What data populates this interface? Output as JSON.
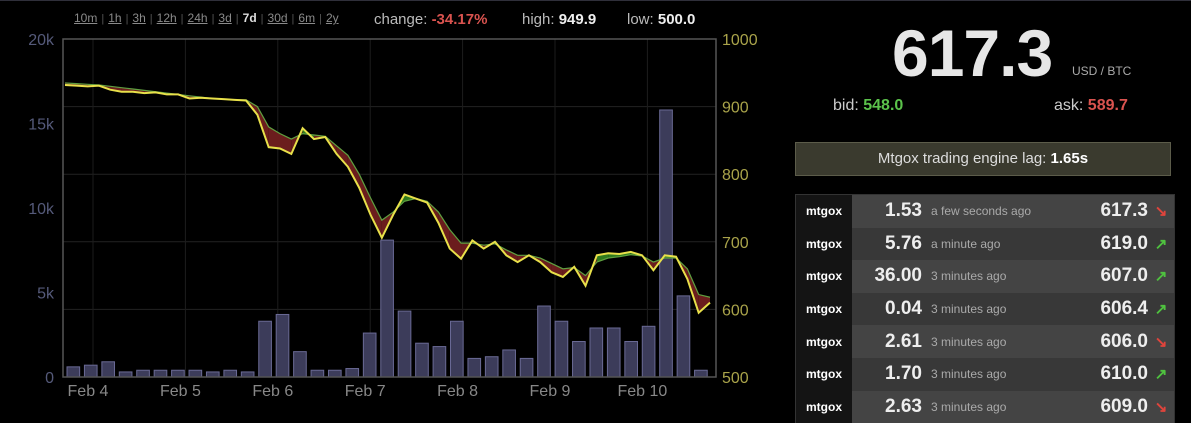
{
  "periods": [
    {
      "label": "10m",
      "active": false
    },
    {
      "label": "1h",
      "active": false
    },
    {
      "label": "3h",
      "active": false
    },
    {
      "label": "12h",
      "active": false
    },
    {
      "label": "24h",
      "active": false
    },
    {
      "label": "3d",
      "active": false
    },
    {
      "label": "7d",
      "active": true
    },
    {
      "label": "30d",
      "active": false
    },
    {
      "label": "6m",
      "active": false
    },
    {
      "label": "2y",
      "active": false
    }
  ],
  "stats": {
    "change_label": "change:",
    "change_value": "-34.17%",
    "high_label": "high:",
    "high_value": "949.9",
    "low_label": "low:",
    "low_value": "500.0"
  },
  "ticker": {
    "price": "617.3",
    "unit": "USD / BTC",
    "bid_label": "bid:",
    "bid": "548.0",
    "ask_label": "ask:",
    "ask": "589.7"
  },
  "lag": {
    "label": "Mtgox trading engine lag:",
    "value": "1.65s"
  },
  "trades": [
    {
      "exchange": "mtgox",
      "volume": "1.53",
      "ago": "a few seconds ago",
      "price": "617.3",
      "direction": "down"
    },
    {
      "exchange": "mtgox",
      "volume": "5.76",
      "ago": "a minute ago",
      "price": "619.0",
      "direction": "up"
    },
    {
      "exchange": "mtgox",
      "volume": "36.00",
      "ago": "3 minutes ago",
      "price": "607.0",
      "direction": "up"
    },
    {
      "exchange": "mtgox",
      "volume": "0.04",
      "ago": "3 minutes ago",
      "price": "606.4",
      "direction": "up"
    },
    {
      "exchange": "mtgox",
      "volume": "2.61",
      "ago": "3 minutes ago",
      "price": "606.0",
      "direction": "down"
    },
    {
      "exchange": "mtgox",
      "volume": "1.70",
      "ago": "3 minutes ago",
      "price": "610.0",
      "direction": "up"
    },
    {
      "exchange": "mtgox",
      "volume": "2.63",
      "ago": "3 minutes ago",
      "price": "609.0",
      "direction": "down"
    }
  ],
  "icons": {
    "up": "arrow-up-right-icon",
    "down": "arrow-down-right-icon"
  },
  "colors": {
    "up": "#4fc23f",
    "down": "#d9534f",
    "price_line": "#e8e04a",
    "volume_bar": "#3c3c5a"
  },
  "chart_data": {
    "type": "line",
    "x_labels": [
      "Feb 4",
      "Feb 5",
      "Feb 6",
      "Feb 7",
      "Feb 8",
      "Feb 9",
      "Feb 10"
    ],
    "y_left_ticks": [
      "0",
      "5k",
      "10k",
      "15k",
      "20k"
    ],
    "y_left_range": [
      0,
      20000
    ],
    "y_right_ticks": [
      "500",
      "600",
      "700",
      "800",
      "900",
      "1000"
    ],
    "y_right_range": [
      500,
      1000
    ],
    "grid": true,
    "price_series": [
      932,
      931,
      930,
      931,
      925,
      922,
      922,
      920,
      921,
      918,
      918,
      912,
      913,
      912,
      911,
      910,
      909,
      888,
      840,
      838,
      830,
      868,
      852,
      855,
      830,
      811,
      780,
      740,
      706,
      740,
      770,
      764,
      758,
      728,
      690,
      675,
      702,
      690,
      700,
      680,
      670,
      680,
      670,
      655,
      648,
      663,
      635,
      680,
      683,
      682,
      685,
      680,
      658,
      680,
      678,
      645,
      595,
      610
    ],
    "ema_series": [
      935,
      934,
      933,
      932,
      930,
      928,
      926,
      924,
      922,
      920,
      918,
      916,
      914,
      912,
      911,
      910,
      910,
      900,
      870,
      860,
      852,
      860,
      858,
      856,
      842,
      828,
      800,
      765,
      732,
      744,
      760,
      764,
      760,
      744,
      718,
      698,
      698,
      695,
      697,
      688,
      680,
      680,
      676,
      668,
      660,
      662,
      650,
      670,
      676,
      678,
      681,
      679,
      670,
      676,
      676,
      660,
      622,
      618
    ],
    "volume_series": [
      600,
      700,
      900,
      300,
      400,
      400,
      400,
      400,
      300,
      400,
      300,
      3300,
      3700,
      1500,
      400,
      400,
      500,
      2600,
      8100,
      3900,
      2000,
      1800,
      3300,
      1100,
      1200,
      1600,
      1100,
      4200,
      3300,
      2100,
      2900,
      2900,
      2100,
      3000,
      15800,
      4800,
      400
    ]
  }
}
